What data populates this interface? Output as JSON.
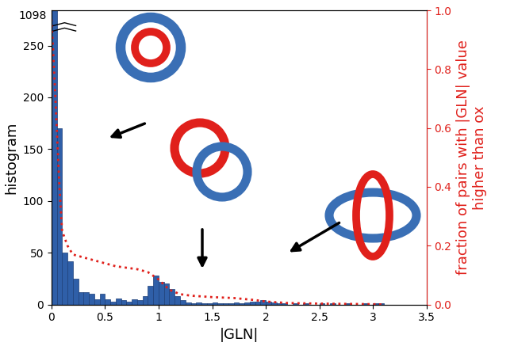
{
  "chart_data": {
    "type": "histogram",
    "xlabel": "|GLN|",
    "ylabel": "histogram",
    "y2label": "fraction of pairs with |GLN| value\nhigher than ox",
    "color": "#2f5fa8",
    "bins": [
      0,
      0.05,
      0.1,
      0.15,
      0.2,
      0.25,
      0.3,
      0.35,
      0.4,
      0.45,
      0.5,
      0.55,
      0.6,
      0.65,
      0.7,
      0.75,
      0.8,
      0.85,
      0.9,
      0.95,
      1.0,
      1.05,
      1.1,
      1.15,
      1.2,
      1.25,
      1.3,
      1.35,
      1.4,
      1.45,
      1.5,
      1.55,
      1.6,
      1.65,
      1.7,
      1.75,
      1.8,
      1.85,
      1.9,
      1.95,
      2.0,
      2.05,
      2.1,
      2.15,
      2.2,
      2.25,
      2.3,
      2.35,
      2.4,
      2.45,
      2.5,
      2.55,
      2.6,
      2.65,
      2.7,
      2.75,
      2.8,
      2.85,
      2.9,
      2.95,
      3.0,
      3.05,
      3.1
    ],
    "counts": [
      1098,
      170,
      50,
      42,
      25,
      12,
      12,
      10,
      5,
      10,
      5,
      3,
      6,
      4,
      3,
      5,
      4,
      8,
      18,
      28,
      22,
      20,
      15,
      8,
      4,
      2,
      1,
      2,
      1,
      1,
      2,
      1,
      1,
      1,
      2,
      1,
      2,
      3,
      3,
      4,
      3,
      2,
      1,
      1,
      0,
      1,
      0,
      1,
      0,
      0,
      1,
      0,
      1,
      0,
      0,
      1,
      0,
      0,
      1,
      0,
      1,
      1
    ],
    "annotations": [
      {
        "text": "1098"
      }
    ],
    "xlim": [
      0,
      3.5
    ],
    "xticks": [
      0,
      0.5,
      1,
      1.5,
      2,
      2.5,
      3,
      3.5
    ],
    "ylim": [
      0,
      284
    ],
    "yticks": [
      0,
      50,
      100,
      150,
      200,
      250
    ],
    "y2lim": [
      0,
      1
    ],
    "y2ticks": [
      {
        "value": 0,
        "label": "0.0"
      },
      0.2,
      0.4,
      0.6,
      0.8,
      {
        "value": 1,
        "label": "1.0"
      }
    ],
    "series": [
      {
        "type": "line",
        "axis": "y2",
        "color": "#e0201b",
        "line_style": "dotted",
        "x": [
          0,
          0.025,
          0.05,
          0.075,
          0.1,
          0.15,
          0.2,
          0.3,
          0.4,
          0.5,
          0.6,
          0.7,
          0.8,
          0.9,
          1.0,
          1.1,
          1.2,
          1.3,
          1.5,
          1.7,
          1.9,
          2.0,
          2.2,
          2.5,
          3.0,
          3.1
        ],
        "values": [
          0.97,
          0.8,
          0.6,
          0.4,
          0.25,
          0.2,
          0.17,
          0.16,
          0.15,
          0.14,
          0.13,
          0.125,
          0.12,
          0.11,
          0.085,
          0.05,
          0.035,
          0.03,
          0.025,
          0.022,
          0.015,
          0.01,
          0.005,
          0.003,
          0.001,
          0.0
        ]
      }
    ]
  }
}
